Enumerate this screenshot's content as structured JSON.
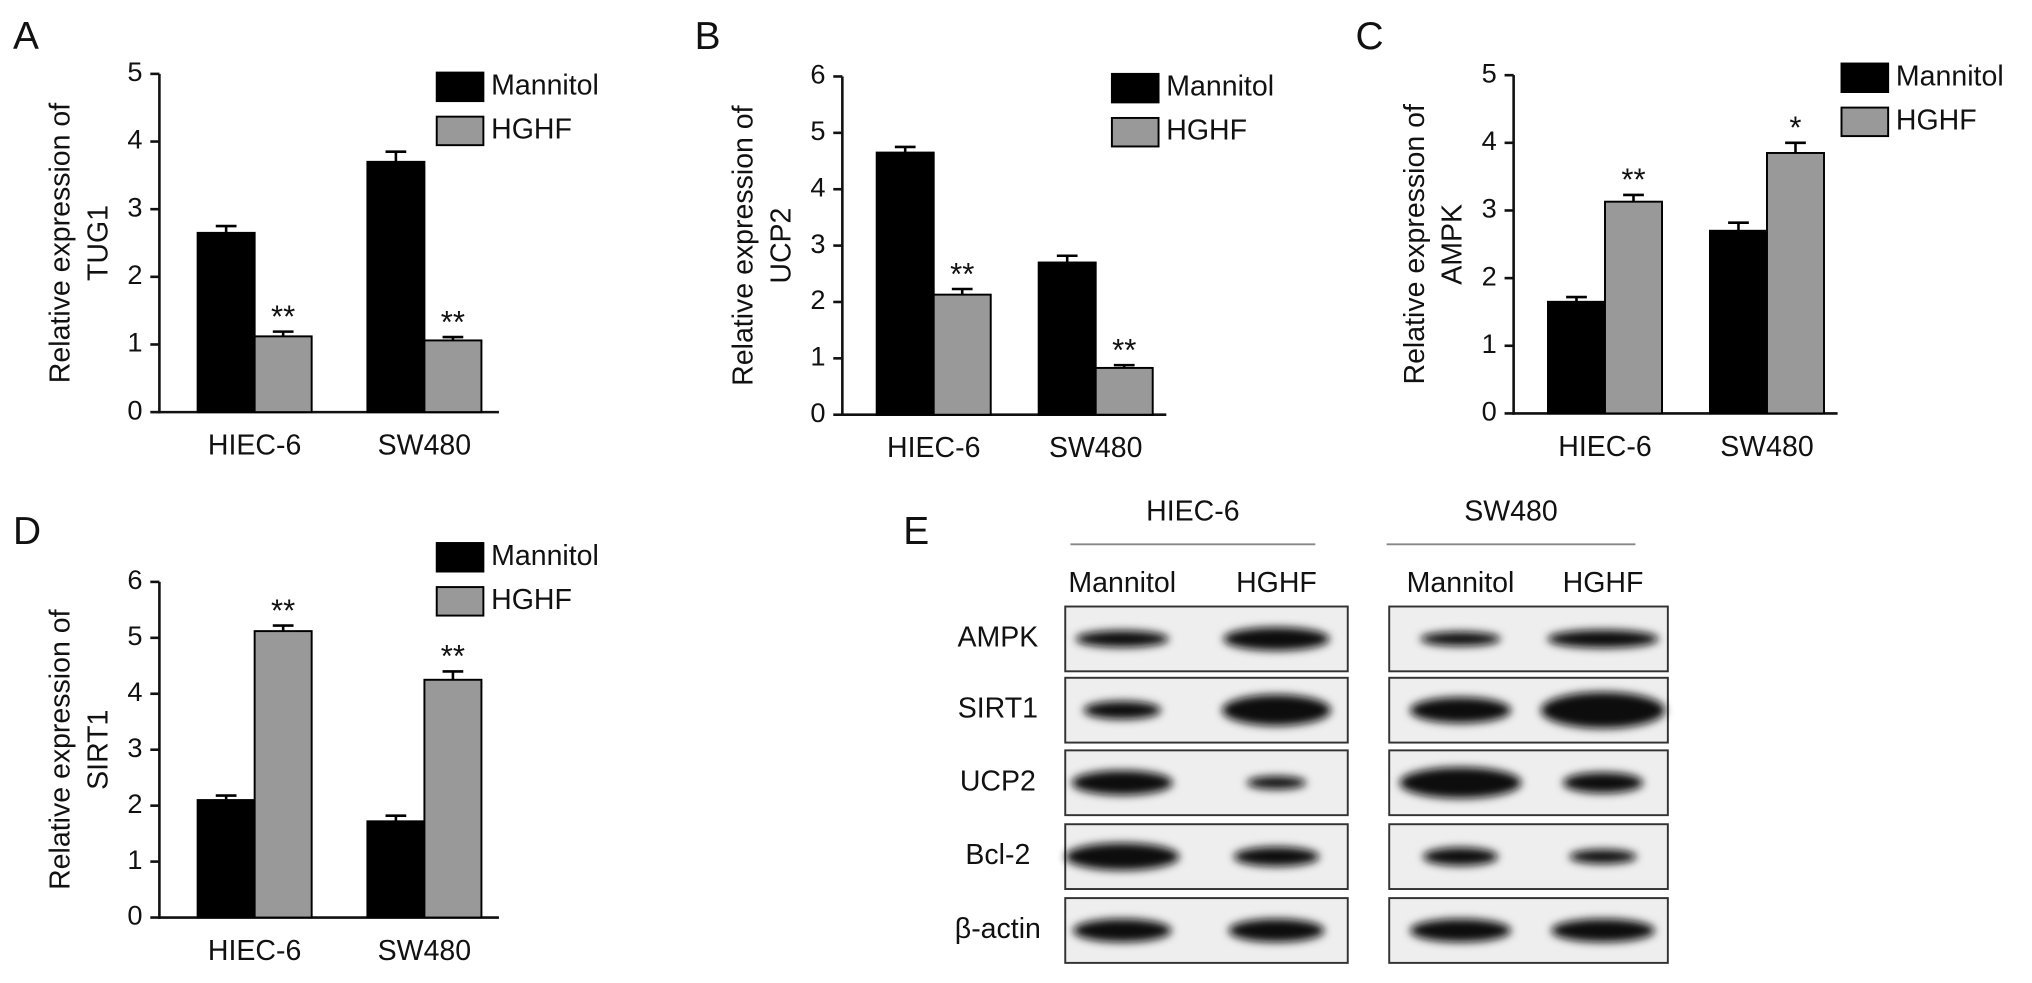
{
  "chart_data": [
    {
      "type": "bar",
      "panel": "A",
      "ylabel": [
        "Relative expression of",
        "TUG1"
      ],
      "categories": [
        "HIEC-6",
        "SW480"
      ],
      "series": [
        {
          "name": "Mannitol",
          "color": "#000000",
          "values": [
            2.65,
            3.7
          ],
          "errors": [
            0.1,
            0.15
          ]
        },
        {
          "name": "HGHF",
          "color": "#999999",
          "values": [
            1.12,
            1.06
          ],
          "errors": [
            0.07,
            0.05
          ],
          "significance": [
            "**",
            "**"
          ]
        }
      ],
      "ylim": [
        0,
        5
      ],
      "yticks": [
        0,
        1,
        2,
        3,
        4,
        5
      ]
    },
    {
      "type": "bar",
      "panel": "B",
      "ylabel": [
        "Relative expression of",
        "UCP2"
      ],
      "categories": [
        "HIEC-6",
        "SW480"
      ],
      "series": [
        {
          "name": "Mannitol",
          "color": "#000000",
          "values": [
            4.65,
            2.7
          ],
          "errors": [
            0.1,
            0.12
          ]
        },
        {
          "name": "HGHF",
          "color": "#999999",
          "values": [
            2.13,
            0.83
          ],
          "errors": [
            0.1,
            0.05
          ],
          "significance": [
            "**",
            "**"
          ]
        }
      ],
      "ylim": [
        0,
        6
      ],
      "yticks": [
        0,
        1,
        2,
        3,
        4,
        5,
        6
      ]
    },
    {
      "type": "bar",
      "panel": "C",
      "ylabel": [
        "Relative expression of",
        "AMPK"
      ],
      "categories": [
        "HIEC-6",
        "SW480"
      ],
      "series": [
        {
          "name": "Mannitol",
          "color": "#000000",
          "values": [
            1.65,
            2.7
          ],
          "errors": [
            0.07,
            0.12
          ]
        },
        {
          "name": "HGHF",
          "color": "#999999",
          "values": [
            3.13,
            3.85
          ],
          "errors": [
            0.1,
            0.15
          ],
          "significance": [
            "**",
            "*"
          ]
        }
      ],
      "ylim": [
        0,
        5
      ],
      "yticks": [
        0,
        1,
        2,
        3,
        4,
        5
      ]
    },
    {
      "type": "bar",
      "panel": "D",
      "ylabel": [
        "Relative expression of",
        "SIRT1"
      ],
      "categories": [
        "HIEC-6",
        "SW480"
      ],
      "series": [
        {
          "name": "Mannitol",
          "color": "#000000",
          "values": [
            2.1,
            1.72
          ],
          "errors": [
            0.08,
            0.1
          ]
        },
        {
          "name": "HGHF",
          "color": "#999999",
          "values": [
            5.12,
            4.25
          ],
          "errors": [
            0.1,
            0.15
          ],
          "significance": [
            "**",
            "**"
          ]
        }
      ],
      "ylim": [
        0,
        6
      ],
      "yticks": [
        0,
        1,
        2,
        3,
        4,
        5,
        6
      ]
    }
  ],
  "blot": {
    "panel": "E",
    "groups": [
      {
        "name": "HIEC-6",
        "lanes": [
          "Mannitol",
          "HGHF"
        ]
      },
      {
        "name": "SW480",
        "lanes": [
          "Mannitol",
          "HGHF"
        ]
      }
    ],
    "rows": [
      "AMPK",
      "SIRT1",
      "UCP2",
      "Bcl-2",
      "β-actin"
    ]
  }
}
